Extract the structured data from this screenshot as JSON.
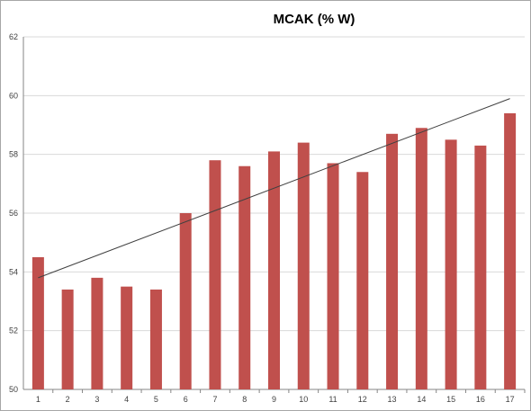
{
  "chart_data": {
    "type": "bar",
    "title": "MCAK (% W)",
    "xlabel": "",
    "ylabel": "",
    "categories": [
      "1",
      "2",
      "3",
      "4",
      "5",
      "6",
      "7",
      "8",
      "9",
      "10",
      "11",
      "12",
      "13",
      "14",
      "15",
      "16",
      "17"
    ],
    "series": [
      {
        "values": [
          54.5,
          53.4,
          53.8,
          53.5,
          53.4,
          56.0,
          57.8,
          57.6,
          58.1,
          58.4,
          57.7,
          57.4,
          58.7,
          58.9,
          58.5,
          58.3,
          59.4
        ],
        "color": "#c0504d"
      }
    ],
    "trendline": {
      "type": "linear",
      "start": {
        "x": 1,
        "y": 53.8
      },
      "end": {
        "x": 17,
        "y": 59.9
      },
      "color": "#404040"
    },
    "ylim": [
      50,
      62
    ],
    "yticks": [
      "50",
      "52",
      "54",
      "56",
      "58",
      "60",
      "62"
    ],
    "grid": "horizontal",
    "legend": "none"
  }
}
